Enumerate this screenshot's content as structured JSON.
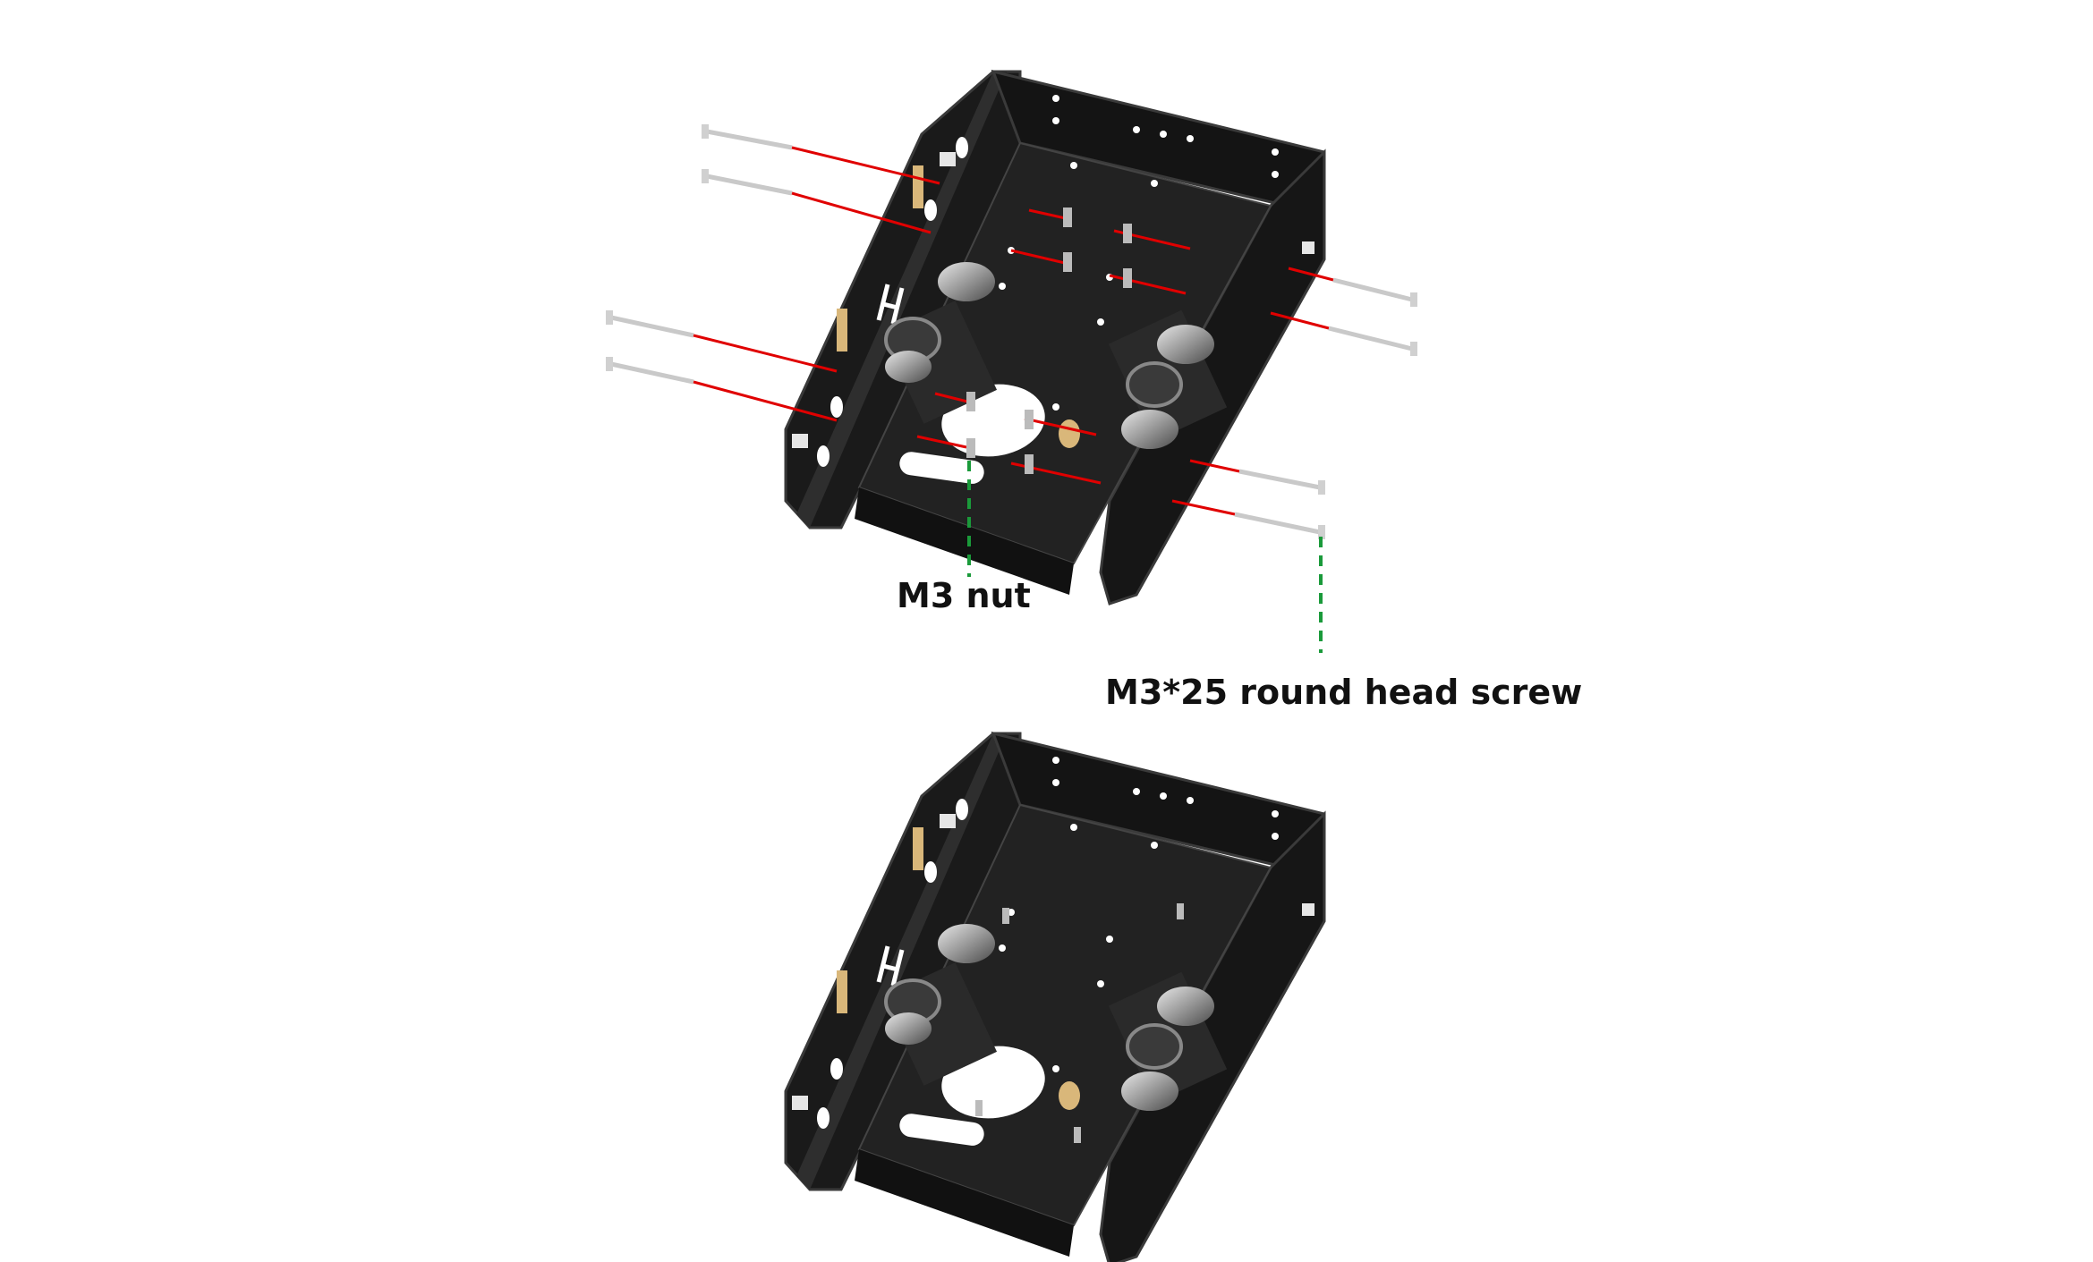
{
  "labels": {
    "nut": "M3 nut",
    "screw": "M3*25 round head screw"
  },
  "colors": {
    "background": "#ffffff",
    "frame": "#1c1c1c",
    "frame_dark": "#0e0e0e",
    "frame_edge": "#3a3a3a",
    "screw": "#c9c9c9",
    "guide_line": "#e00000",
    "callout_line": "#1a9a3a",
    "standoff": "#d9b77a"
  },
  "icons": {
    "assembly": "robot-chassis-frame",
    "fastener": "round-head-screw-icon",
    "nut": "hex-nut-icon"
  }
}
